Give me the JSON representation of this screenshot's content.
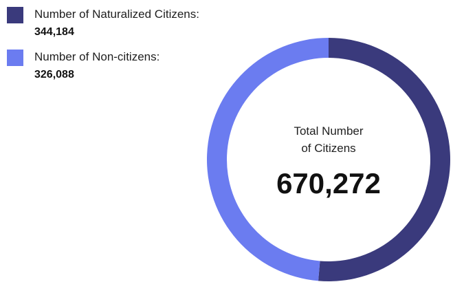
{
  "chart_data": {
    "type": "pie",
    "title": "",
    "center_label": "Total Number of Citizens",
    "center_value": "670,272",
    "total": 670272,
    "series": [
      {
        "name": "Number of Naturalized Citizens:",
        "value": 344184,
        "value_label": "344,184",
        "color": "#3a3a7c"
      },
      {
        "name": "Number of Non-citizens:",
        "value": 326088,
        "value_label": "326,088",
        "color": "#6b7cf0"
      }
    ],
    "legend_position": "top-left"
  }
}
